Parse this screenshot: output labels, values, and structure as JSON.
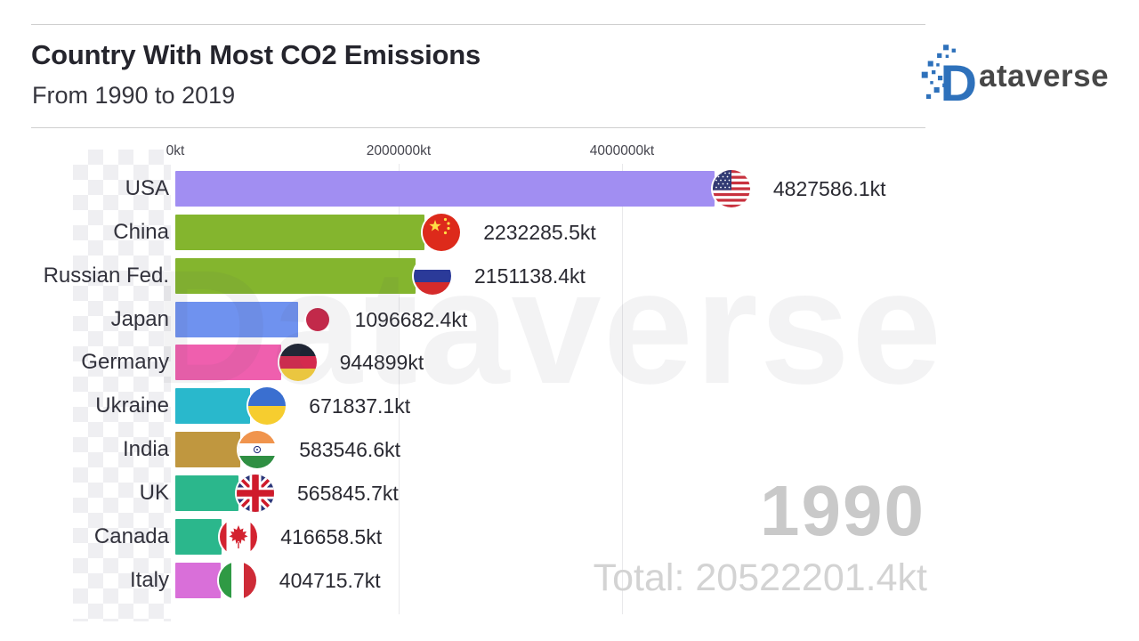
{
  "header": {
    "title": "Country With Most CO2 Emissions",
    "subtitle": "From 1990 to 2019"
  },
  "logo": {
    "initial": "D",
    "rest": "ataverse",
    "brand_color": "#2e71bb",
    "text_color": "#474747"
  },
  "watermark": {
    "text": "Dataverse"
  },
  "overlay": {
    "year": "1990",
    "total": "Total: 20522201.4kt"
  },
  "chart_data": {
    "type": "bar",
    "orientation": "horizontal",
    "unit": "kt",
    "title": "Country With Most CO2 Emissions",
    "subtitle": "From 1990 to 2019",
    "year": "1990",
    "total_kt": 20522201.4,
    "grid": true,
    "legend": false,
    "xlim": [
      0,
      6700000
    ],
    "x_ticks": [
      {
        "label": "0kt",
        "value": 0
      },
      {
        "label": "2000000kt",
        "value": 2000000
      },
      {
        "label": "4000000kt",
        "value": 4000000
      }
    ],
    "bars": [
      {
        "country": "USA",
        "value": 4827586.1,
        "label": "4827586.1kt",
        "color": "#a18ef2",
        "flag": "us"
      },
      {
        "country": "China",
        "value": 2232285.5,
        "label": "2232285.5kt",
        "color": "#84b52e",
        "flag": "cn"
      },
      {
        "country": "Russian Fed.",
        "value": 2151138.4,
        "label": "2151138.4kt",
        "color": "#84b52e",
        "flag": "ru"
      },
      {
        "country": "Japan",
        "value": 1096682.4,
        "label": "1096682.4kt",
        "color": "#6f92ef",
        "flag": "jp"
      },
      {
        "country": "Germany",
        "value": 944899,
        "label": "944899kt",
        "color": "#ef5fae",
        "flag": "de"
      },
      {
        "country": "Ukraine",
        "value": 671837.1,
        "label": "671837.1kt",
        "color": "#29b8cc",
        "flag": "ua"
      },
      {
        "country": "India",
        "value": 583546.6,
        "label": "583546.6kt",
        "color": "#c0973f",
        "flag": "in"
      },
      {
        "country": "UK",
        "value": 565845.7,
        "label": "565845.7kt",
        "color": "#2bb78c",
        "flag": "gb"
      },
      {
        "country": "Canada",
        "value": 416658.5,
        "label": "416658.5kt",
        "color": "#2bb78c",
        "flag": "ca"
      },
      {
        "country": "Italy",
        "value": 404715.7,
        "label": "404715.7kt",
        "color": "#d96fd9",
        "flag": "it"
      }
    ]
  }
}
